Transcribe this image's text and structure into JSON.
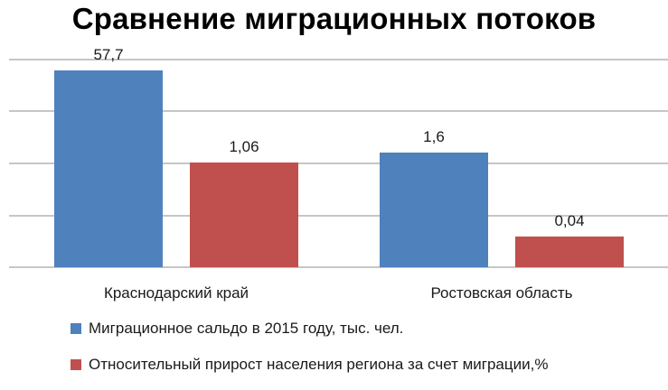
{
  "chart_data": {
    "type": "bar",
    "title": "Сравнение миграционных потоков",
    "categories": [
      "Краснодарский край",
      "Ростовская область"
    ],
    "series": [
      {
        "name": "Миграционное  сальдо в 2015 году, тыс. чел.",
        "values": [
          57.7,
          1.6
        ],
        "labels": [
          "57,7",
          "1,6"
        ],
        "color": "#4f81bd"
      },
      {
        "name": "Относительный  прирост населения  региона  за счет миграции,%",
        "values": [
          1.06,
          0.04
        ],
        "labels": [
          "1,06",
          "0,04"
        ],
        "color": "#c0504d"
      }
    ],
    "grid": true,
    "legend_position": "bottom"
  }
}
